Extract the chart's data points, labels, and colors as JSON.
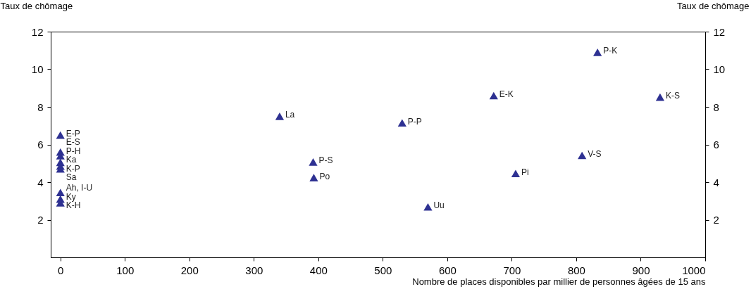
{
  "chart_data": {
    "type": "scatter",
    "xlabel": "Nombre de places disponibles par millier de personnes âgées de 15 ans",
    "ylabel": "Taux de chômage",
    "y2label": "Taux de chômage",
    "x": [
      0,
      0,
      0,
      0,
      0,
      0,
      0,
      0,
      0,
      340,
      530,
      392,
      393,
      570,
      672,
      833,
      930,
      809,
      706
    ],
    "series": [
      {
        "color": "#2e3192",
        "values": [
          6.5,
          5.6,
          5.4,
          5.05,
          4.85,
          4.7,
          3.45,
          3.1,
          2.9,
          7.5,
          7.15,
          5.07,
          4.24,
          2.68,
          8.6,
          10.9,
          8.52,
          5.42,
          4.46
        ]
      }
    ],
    "annotations": [
      {
        "text": "E-P",
        "x": 0,
        "y": 6.5
      },
      {
        "text": "E-S",
        "x": 0,
        "y": 5.6
      },
      {
        "text": "P-H",
        "x": 0,
        "y": 5.4
      },
      {
        "text": "Ka",
        "x": 0,
        "y": 5.05
      },
      {
        "text": "K-P",
        "x": 0,
        "y": 4.85
      },
      {
        "text": "Sa",
        "x": 0,
        "y": 4.7
      },
      {
        "text": "Ah, I-U",
        "x": 0,
        "y": 3.45
      },
      {
        "text": "Ky",
        "x": 0,
        "y": 3.1
      },
      {
        "text": "K-H",
        "x": 0,
        "y": 2.9
      },
      {
        "text": "La",
        "x": 340,
        "y": 7.5
      },
      {
        "text": "P-P",
        "x": 530,
        "y": 7.15
      },
      {
        "text": "P-S",
        "x": 392,
        "y": 5.07
      },
      {
        "text": "Po",
        "x": 393,
        "y": 4.24
      },
      {
        "text": "Uu",
        "x": 570,
        "y": 2.68
      },
      {
        "text": "E-K",
        "x": 672,
        "y": 8.6
      },
      {
        "text": "P-K",
        "x": 833,
        "y": 10.9
      },
      {
        "text": "K-S",
        "x": 930,
        "y": 8.52
      },
      {
        "text": "V-S",
        "x": 809,
        "y": 5.42
      },
      {
        "text": "Pi",
        "x": 706,
        "y": 4.46
      }
    ],
    "xlim": [
      -15,
      1000
    ],
    "xticks": [
      0,
      100,
      200,
      300,
      400,
      500,
      600,
      700,
      800,
      900,
      1000
    ],
    "ylim": [
      0,
      12
    ],
    "yticks": [
      2,
      4,
      6,
      8,
      10,
      12
    ],
    "y2lim": [
      0,
      12
    ],
    "y2ticks": [
      2,
      4,
      6,
      8,
      10,
      12
    ],
    "marker": "triangle",
    "grid": false,
    "legend": false
  }
}
